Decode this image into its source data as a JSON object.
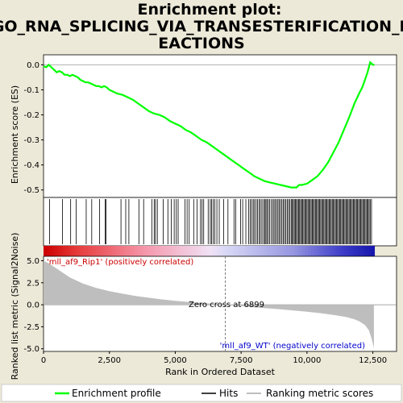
{
  "chart_data": {
    "type": "line",
    "title_lines": [
      "Enrichment plot:",
      "GO_RNA_SPLICING_VIA_TRANSESTERIFICATION_R",
      "EACTIONS"
    ],
    "top_panel": {
      "ylabel": "Enrichment score (ES)",
      "ylim": [
        -0.53,
        0.04
      ],
      "yticks": [
        "0.0",
        "-0.1",
        "-0.2",
        "-0.3",
        "-0.4",
        "-0.5"
      ],
      "ytick_values": [
        0.0,
        -0.1,
        -0.2,
        -0.3,
        -0.4,
        -0.5
      ],
      "es_curve": {
        "name": "Enrichment profile",
        "color": "#00ff00",
        "points": [
          [
            0,
            -0.005
          ],
          [
            100,
            -0.01
          ],
          [
            200,
            0.0
          ],
          [
            300,
            -0.01
          ],
          [
            400,
            -0.02
          ],
          [
            500,
            -0.03
          ],
          [
            600,
            -0.025
          ],
          [
            700,
            -0.03
          ],
          [
            800,
            -0.04
          ],
          [
            900,
            -0.04
          ],
          [
            1000,
            -0.045
          ],
          [
            1100,
            -0.04
          ],
          [
            1200,
            -0.045
          ],
          [
            1300,
            -0.05
          ],
          [
            1400,
            -0.06
          ],
          [
            1500,
            -0.065
          ],
          [
            1600,
            -0.07
          ],
          [
            1700,
            -0.07
          ],
          [
            1800,
            -0.075
          ],
          [
            1900,
            -0.08
          ],
          [
            2000,
            -0.085
          ],
          [
            2100,
            -0.085
          ],
          [
            2200,
            -0.09
          ],
          [
            2300,
            -0.085
          ],
          [
            2400,
            -0.09
          ],
          [
            2500,
            -0.1
          ],
          [
            2600,
            -0.105
          ],
          [
            2700,
            -0.11
          ],
          [
            2800,
            -0.115
          ],
          [
            3000,
            -0.12
          ],
          [
            3200,
            -0.13
          ],
          [
            3400,
            -0.14
          ],
          [
            3600,
            -0.155
          ],
          [
            3800,
            -0.17
          ],
          [
            4000,
            -0.185
          ],
          [
            4200,
            -0.195
          ],
          [
            4400,
            -0.2
          ],
          [
            4600,
            -0.21
          ],
          [
            4800,
            -0.225
          ],
          [
            5000,
            -0.235
          ],
          [
            5200,
            -0.245
          ],
          [
            5400,
            -0.26
          ],
          [
            5600,
            -0.27
          ],
          [
            5800,
            -0.285
          ],
          [
            6000,
            -0.3
          ],
          [
            6200,
            -0.31
          ],
          [
            6400,
            -0.325
          ],
          [
            6600,
            -0.34
          ],
          [
            6800,
            -0.355
          ],
          [
            7000,
            -0.37
          ],
          [
            7200,
            -0.385
          ],
          [
            7400,
            -0.4
          ],
          [
            7600,
            -0.415
          ],
          [
            7800,
            -0.43
          ],
          [
            8000,
            -0.445
          ],
          [
            8200,
            -0.455
          ],
          [
            8400,
            -0.465
          ],
          [
            8600,
            -0.47
          ],
          [
            8800,
            -0.475
          ],
          [
            9000,
            -0.48
          ],
          [
            9200,
            -0.485
          ],
          [
            9400,
            -0.49
          ],
          [
            9600,
            -0.49
          ],
          [
            9700,
            -0.48
          ],
          [
            9800,
            -0.48
          ],
          [
            10000,
            -0.475
          ],
          [
            10200,
            -0.46
          ],
          [
            10400,
            -0.445
          ],
          [
            10600,
            -0.42
          ],
          [
            10800,
            -0.39
          ],
          [
            11000,
            -0.35
          ],
          [
            11200,
            -0.31
          ],
          [
            11400,
            -0.26
          ],
          [
            11600,
            -0.21
          ],
          [
            11800,
            -0.155
          ],
          [
            12000,
            -0.11
          ],
          [
            12100,
            -0.09
          ],
          [
            12200,
            -0.06
          ],
          [
            12300,
            -0.03
          ],
          [
            12400,
            0.01
          ],
          [
            12500,
            0.0
          ],
          [
            12560,
            0.0
          ]
        ]
      }
    },
    "hits_panel": {
      "name": "Hits",
      "hit_positions": [
        230,
        720,
        1030,
        1240,
        1620,
        1830,
        2130,
        2340,
        2370,
        2940,
        3120,
        3240,
        3620,
        3800,
        4110,
        4200,
        4250,
        4320,
        4540,
        4720,
        4850,
        4960,
        5040,
        5110,
        5370,
        5450,
        5530,
        5700,
        5830,
        5960,
        6020,
        6080,
        6250,
        6330,
        6380,
        6440,
        6500,
        6580,
        6670,
        6840,
        7000,
        7230,
        7300,
        7480,
        7560,
        7680,
        7790,
        7850,
        7900,
        7960,
        8010,
        8070,
        8120,
        8180,
        8230,
        8290,
        8350,
        8400,
        8440,
        8480,
        8530,
        8580,
        8640,
        8700,
        8750,
        8800,
        8850,
        8900,
        8950,
        9000,
        9050,
        9100,
        9150,
        9200,
        9250,
        9300,
        9350,
        9400,
        9440,
        9480,
        9520,
        9560,
        9600,
        9640,
        9680,
        9720,
        9760,
        9800,
        9840,
        9880,
        9920,
        9960,
        10000,
        10040,
        10080,
        10120,
        10160,
        10200,
        10240,
        10280,
        10320,
        10360,
        10400,
        10440,
        10480,
        10520,
        10560,
        10600,
        10640,
        10680,
        10720,
        10760,
        10800,
        10840,
        10880,
        10920,
        10960,
        11000,
        11040,
        11080,
        11120,
        11160,
        11200,
        11240,
        11280,
        11320,
        11360,
        11400,
        11440,
        11480,
        11520,
        11560,
        11600,
        11640,
        11680,
        11720,
        11760,
        11800,
        11840,
        11880,
        11920,
        11960,
        12000,
        12040,
        12080,
        12120,
        12160,
        12200,
        12240,
        12280,
        12320,
        12360,
        12400,
        12450
      ]
    },
    "bottom_panel": {
      "ylabel": "Ranked list metric (Signal2Noise)",
      "ylim": [
        -5.3,
        5.5
      ],
      "yticks": [
        "5.0",
        "2.5",
        "0.0",
        "-2.5",
        "-5.0"
      ],
      "ytick_values": [
        5.0,
        2.5,
        0.0,
        -2.5,
        -5.0
      ],
      "metric_points": [
        [
          0,
          5.0
        ],
        [
          200,
          4.7
        ],
        [
          500,
          4.1
        ],
        [
          1000,
          3.1
        ],
        [
          1500,
          2.4
        ],
        [
          2000,
          1.9
        ],
        [
          2500,
          1.55
        ],
        [
          3000,
          1.25
        ],
        [
          3500,
          1.0
        ],
        [
          4000,
          0.8
        ],
        [
          4500,
          0.6
        ],
        [
          5000,
          0.45
        ],
        [
          5500,
          0.32
        ],
        [
          6000,
          0.2
        ],
        [
          6500,
          0.1
        ],
        [
          6899,
          0.0
        ],
        [
          7500,
          -0.15
        ],
        [
          8000,
          -0.28
        ],
        [
          8500,
          -0.4
        ],
        [
          9000,
          -0.52
        ],
        [
          9500,
          -0.65
        ],
        [
          10000,
          -0.8
        ],
        [
          10500,
          -0.95
        ],
        [
          11000,
          -1.15
        ],
        [
          11500,
          -1.4
        ],
        [
          11800,
          -1.65
        ],
        [
          12000,
          -1.9
        ],
        [
          12200,
          -2.3
        ],
        [
          12350,
          -2.9
        ],
        [
          12450,
          -3.8
        ],
        [
          12540,
          -4.9
        ]
      ],
      "fill_color": "#bebebe",
      "pos_label": "'mll_af9_Rip1' (positively correlated)",
      "pos_color": "#cc0000",
      "neg_label": "'mll_af9_WT' (negatively correlated)",
      "neg_color": "#0000cc",
      "zero_cross_label": "Zero cross at 6899",
      "zero_cross": 6899
    },
    "xlabel": "Rank in Ordered Dataset",
    "xlim": [
      0,
      13400
    ],
    "xticks": [
      "0",
      "2,500",
      "5,000",
      "7,500",
      "10,000",
      "12,500"
    ],
    "xtick_values": [
      0,
      2500,
      5000,
      7500,
      10000,
      12500
    ],
    "n_genes": 12560,
    "legend": [
      {
        "name": "Enrichment profile",
        "color": "#00ff00"
      },
      {
        "name": "Hits",
        "color": "#000000"
      },
      {
        "name": "Ranking metric scores",
        "color": "#bebebe"
      }
    ]
  }
}
